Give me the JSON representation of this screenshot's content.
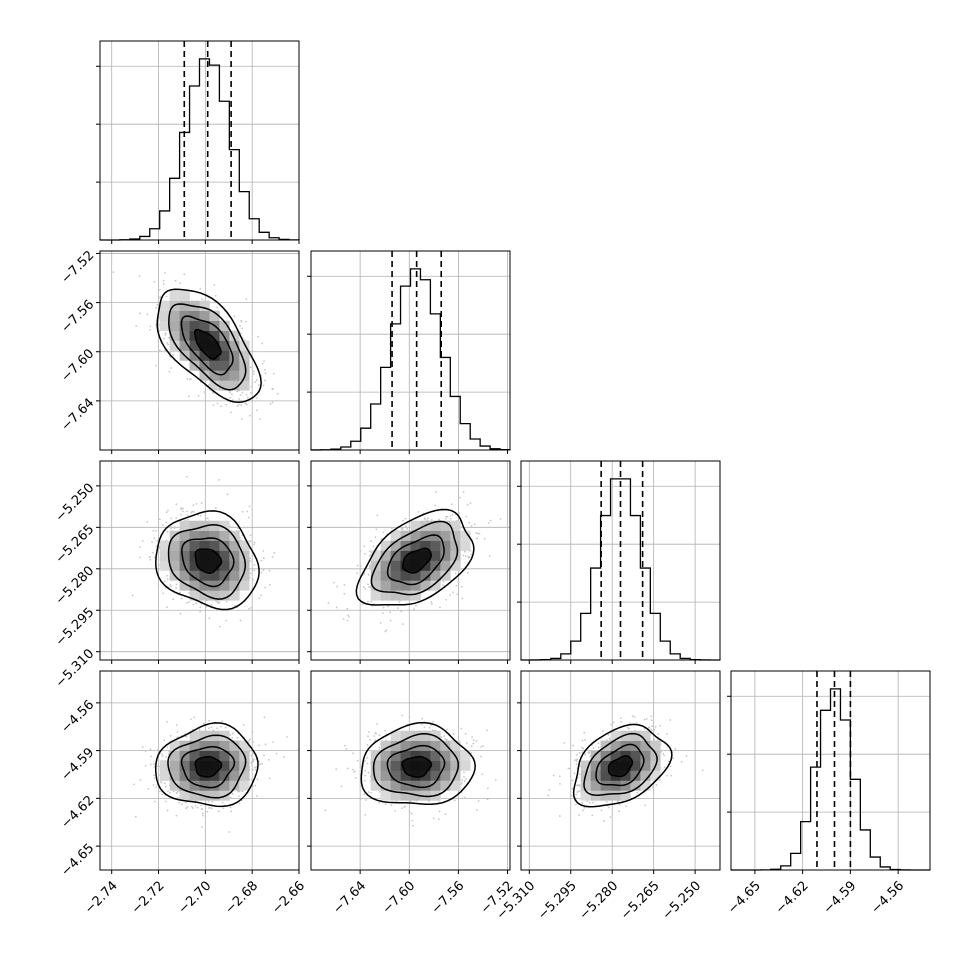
{
  "chart_data": {
    "type": "corner",
    "n_params": 4,
    "parameters": [
      {
        "median": -2.699,
        "q16": -2.709,
        "q84": -2.689,
        "std": 0.0095,
        "range": [
          -2.745,
          -2.66
        ],
        "ticks": [
          -2.74,
          -2.72,
          -2.7,
          -2.68,
          -2.66
        ],
        "tick_labels": [
          "−2.74",
          "−2.72",
          "−2.70",
          "−2.68",
          "−2.66"
        ]
      },
      {
        "median": -7.594,
        "q16": -7.614,
        "q84": -7.574,
        "std": 0.02,
        "range": [
          -7.68,
          -7.518
        ],
        "ticks": [
          -7.64,
          -7.6,
          -7.56,
          -7.52
        ],
        "tick_labels": [
          "−7.64",
          "−7.60",
          "−7.56",
          "−7.52"
        ]
      },
      {
        "median": -5.277,
        "q16": -5.284,
        "q84": -5.269,
        "std": 0.0075,
        "range": [
          -5.313,
          -5.241
        ],
        "ticks": [
          -5.31,
          -5.295,
          -5.28,
          -5.265,
          -5.25
        ],
        "tick_labels": [
          "−5.310",
          "−5.295",
          "−5.280",
          "−5.265",
          "−5.250"
        ]
      },
      {
        "median": -4.6,
        "q16": -4.611,
        "q84": -4.59,
        "std": 0.011,
        "range": [
          -4.665,
          -4.54
        ],
        "ticks": [
          -4.65,
          -4.62,
          -4.59,
          -4.56
        ],
        "tick_labels": [
          "−4.65",
          "−4.62",
          "−4.59",
          "−4.56"
        ]
      }
    ],
    "correlations": [
      {
        "row": 1,
        "col": 0,
        "rho": -0.6
      },
      {
        "row": 2,
        "col": 0,
        "rho": -0.15
      },
      {
        "row": 2,
        "col": 1,
        "rho": 0.45
      },
      {
        "row": 3,
        "col": 0,
        "rho": 0.05
      },
      {
        "row": 3,
        "col": 1,
        "rho": 0.05
      },
      {
        "row": 3,
        "col": 2,
        "rho": 0.35
      }
    ],
    "quantile_lines": [
      0.16,
      0.5,
      0.84
    ],
    "contour_levels_sigma": [
      0.5,
      1.0,
      1.5,
      2.0
    ],
    "histogram_bins": 20,
    "grid": true,
    "line_color": "#000000",
    "point_color": "#c8c8c8"
  }
}
